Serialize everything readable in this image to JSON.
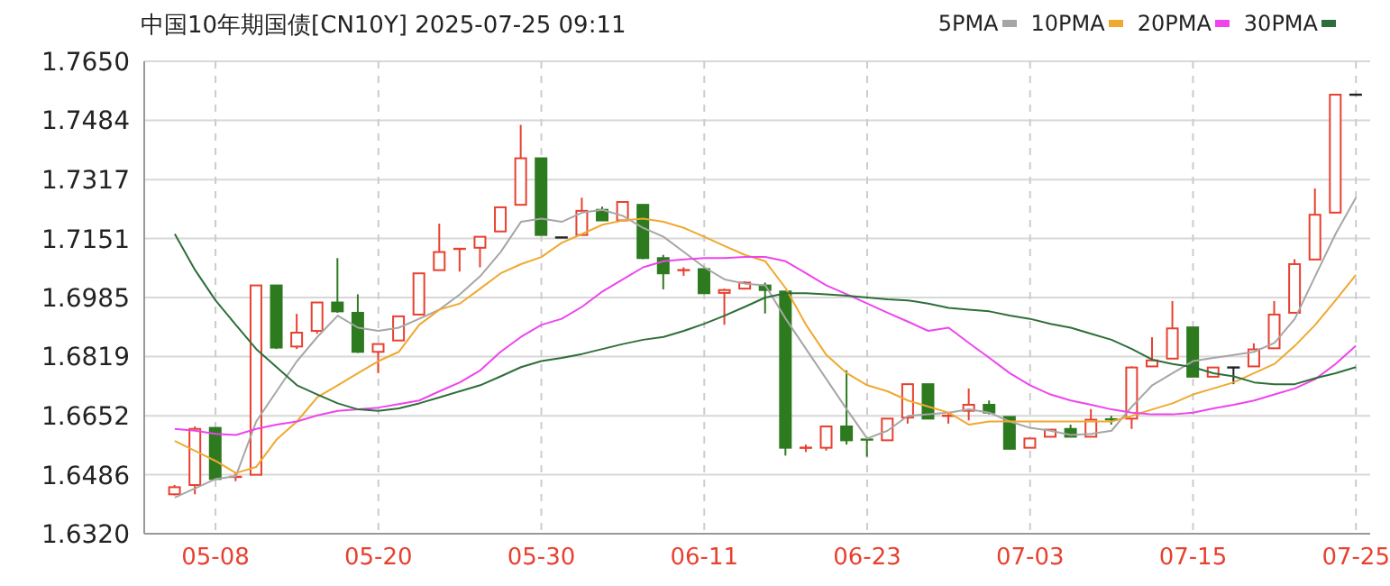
{
  "chart_data": {
    "type": "candlestick",
    "title": "中国10年期国债[CN10Y] 2025-07-25 09:11",
    "categories": [
      null,
      null,
      "05-08",
      null,
      null,
      null,
      null,
      null,
      null,
      null,
      "05-20",
      null,
      null,
      null,
      null,
      null,
      null,
      null,
      "05-30",
      null,
      null,
      null,
      null,
      null,
      null,
      null,
      "06-11",
      null,
      null,
      null,
      null,
      null,
      null,
      null,
      "06-23",
      null,
      null,
      null,
      null,
      null,
      null,
      null,
      "07-03",
      null,
      null,
      null,
      null,
      null,
      null,
      null,
      "07-15",
      null,
      null,
      null,
      null,
      null,
      null,
      null,
      "07-25"
    ],
    "ohlc": [
      [
        1.6431,
        1.6457,
        1.6428,
        1.6451
      ],
      [
        1.6457,
        1.6622,
        1.6431,
        1.6615
      ],
      [
        1.6618,
        1.6618,
        1.6474,
        1.6474
      ],
      [
        1.6476,
        1.649,
        1.6468,
        1.648
      ],
      [
        1.6486,
        1.7019,
        1.6486,
        1.7019
      ],
      [
        1.7019,
        1.7019,
        1.684,
        1.6844
      ],
      [
        1.6847,
        1.6939,
        1.684,
        1.6886
      ],
      [
        1.6891,
        1.6971,
        1.6883,
        1.6971
      ],
      [
        1.6971,
        1.7096,
        1.6942,
        1.6946
      ],
      [
        1.6942,
        1.6994,
        1.6829,
        1.6832
      ],
      [
        1.6832,
        1.6854,
        1.6772,
        1.6854
      ],
      [
        1.6864,
        1.6932,
        1.6864,
        1.6932
      ],
      [
        1.6937,
        1.7053,
        1.6937,
        1.7053
      ],
      [
        1.7062,
        1.7193,
        1.7062,
        1.7113
      ],
      [
        1.7119,
        1.7122,
        1.7058,
        1.7122
      ],
      [
        1.7125,
        1.7156,
        1.707,
        1.7156
      ],
      [
        1.7171,
        1.7239,
        1.7171,
        1.7239
      ],
      [
        1.7246,
        1.7471,
        1.7246,
        1.7377
      ],
      [
        1.7377,
        1.7377,
        1.7161,
        1.7161
      ],
      [
        1.7154,
        1.7154,
        1.7154,
        1.7154
      ],
      [
        1.7161,
        1.7266,
        1.7161,
        1.7229
      ],
      [
        1.7232,
        1.7241,
        1.7202,
        1.7202
      ],
      [
        1.7202,
        1.7254,
        1.7202,
        1.7254
      ],
      [
        1.7246,
        1.7246,
        1.7093,
        1.7096
      ],
      [
        1.7096,
        1.7105,
        1.7008,
        1.7053
      ],
      [
        1.7058,
        1.707,
        1.7046,
        1.7062
      ],
      [
        1.7065,
        1.7065,
        1.6997,
        1.6997
      ],
      [
        1.6998,
        1.701,
        1.6908,
        1.7006
      ],
      [
        1.701,
        1.703,
        1.701,
        1.7027
      ],
      [
        1.7019,
        1.7027,
        1.694,
        1.7006
      ],
      [
        1.7002,
        1.7002,
        1.654,
        1.6562
      ],
      [
        1.6557,
        1.6571,
        1.655,
        1.6562
      ],
      [
        1.6562,
        1.6622,
        1.6554,
        1.6622
      ],
      [
        1.6622,
        1.678,
        1.6571,
        1.6583
      ],
      [
        1.6585,
        1.6586,
        1.6537,
        1.658
      ],
      [
        1.6583,
        1.6644,
        1.6583,
        1.6644
      ],
      [
        1.6647,
        1.6741,
        1.663,
        1.6741
      ],
      [
        1.6741,
        1.6741,
        1.6644,
        1.6644
      ],
      [
        1.6649,
        1.6657,
        1.663,
        1.6652
      ],
      [
        1.6666,
        1.6729,
        1.6639,
        1.6683
      ],
      [
        1.6683,
        1.6695,
        1.6656,
        1.6661
      ],
      [
        1.6649,
        1.6649,
        1.6559,
        1.6559
      ],
      [
        1.6562,
        1.6588,
        1.6562,
        1.6588
      ],
      [
        1.6593,
        1.6613,
        1.6593,
        1.6613
      ],
      [
        1.6615,
        1.6627,
        1.6593,
        1.6593
      ],
      [
        1.6593,
        1.6671,
        1.6593,
        1.6641
      ],
      [
        1.6642,
        1.6652,
        1.6627,
        1.6639
      ],
      [
        1.6644,
        1.6791,
        1.6615,
        1.6788
      ],
      [
        1.6791,
        1.6873,
        1.6791,
        1.6808
      ],
      [
        1.6813,
        1.6975,
        1.6813,
        1.6898
      ],
      [
        1.6901,
        1.6901,
        1.6762,
        1.6762
      ],
      [
        1.6762,
        1.6788,
        1.6762,
        1.6788
      ],
      [
        1.6788,
        1.679,
        1.6741,
        1.6788
      ],
      [
        1.6791,
        1.6856,
        1.6791,
        1.6839
      ],
      [
        1.6842,
        1.6975,
        1.6842,
        1.6937
      ],
      [
        1.6942,
        1.7093,
        1.6942,
        1.7079
      ],
      [
        1.7092,
        1.7292,
        1.7092,
        1.7218
      ],
      [
        1.7224,
        1.7556,
        1.7224,
        1.7556
      ],
      [
        1.7556,
        1.7556,
        1.7556,
        1.7556
      ]
    ],
    "colors": [
      "#e8402f",
      "#e8402f",
      "#2d7a1f",
      "#e8402f",
      "#e8402f",
      "#2d7a1f",
      "#e8402f",
      "#e8402f",
      "#2d7a1f",
      "#2d7a1f",
      "#e8402f",
      "#e8402f",
      "#e8402f",
      "#e8402f",
      "#e8402f",
      "#e8402f",
      "#e8402f",
      "#e8402f",
      "#2d7a1f",
      "#222222",
      "#e8402f",
      "#2d7a1f",
      "#e8402f",
      "#2d7a1f",
      "#2d7a1f",
      "#e8402f",
      "#2d7a1f",
      "#e8402f",
      "#e8402f",
      "#2d7a1f",
      "#2d7a1f",
      "#e8402f",
      "#e8402f",
      "#2d7a1f",
      "#2d7a1f",
      "#e8402f",
      "#e8402f",
      "#2d7a1f",
      "#e8402f",
      "#e8402f",
      "#2d7a1f",
      "#2d7a1f",
      "#e8402f",
      "#e8402f",
      "#2d7a1f",
      "#e8402f",
      "#2d7a1f",
      "#e8402f",
      "#e8402f",
      "#e8402f",
      "#2d7a1f",
      "#e8402f",
      "#222222",
      "#e8402f",
      "#e8402f",
      "#e8402f",
      "#e8402f",
      "#e8402f",
      "#222222"
    ],
    "series": [
      {
        "name": "5PMA",
        "type": "line",
        "color": "#a6a6a6",
        "values": [
          1.6422,
          1.6448,
          1.6474,
          1.6482,
          1.6636,
          1.6721,
          1.6806,
          1.6874,
          1.6934,
          1.69,
          1.6891,
          1.69,
          1.6925,
          1.6951,
          1.6994,
          1.7045,
          1.7113,
          1.7198,
          1.7207,
          1.7198,
          1.7224,
          1.7232,
          1.7215,
          1.7181,
          1.7156,
          1.7113,
          1.707,
          1.7036,
          1.7024,
          1.7019,
          1.6925,
          1.684,
          1.6755,
          1.667,
          1.6588,
          1.661,
          1.6652,
          1.6656,
          1.6661,
          1.667,
          1.6661,
          1.6636,
          1.6618,
          1.661,
          1.6598,
          1.6601,
          1.661,
          1.6678,
          1.6738,
          1.6772,
          1.6806,
          1.6815,
          1.6823,
          1.6832,
          1.6857,
          1.6925,
          1.7045,
          1.7164,
          1.7266
        ]
      },
      {
        "name": "10PMA",
        "type": "line",
        "color": "#f0a830",
        "values": [
          1.6581,
          1.6553,
          1.6525,
          1.6491,
          1.6508,
          1.6585,
          1.6636,
          1.6704,
          1.6738,
          1.6772,
          1.6806,
          1.6832,
          1.6908,
          1.6951,
          1.6968,
          1.701,
          1.7053,
          1.7079,
          1.7099,
          1.7139,
          1.7164,
          1.719,
          1.7202,
          1.7207,
          1.7198,
          1.7181,
          1.7156,
          1.713,
          1.7105,
          1.7087,
          1.7011,
          1.6908,
          1.6823,
          1.6772,
          1.6738,
          1.6721,
          1.6695,
          1.6678,
          1.6661,
          1.6627,
          1.6636,
          1.6636,
          1.6636,
          1.6636,
          1.6636,
          1.6636,
          1.6636,
          1.6652,
          1.667,
          1.6687,
          1.6712,
          1.6729,
          1.6746,
          1.6772,
          1.6798,
          1.6849,
          1.6908,
          1.6977,
          1.7049
        ]
      },
      {
        "name": "20PMA",
        "type": "line",
        "color": "#ee44ee",
        "values": [
          1.6615,
          1.661,
          1.6601,
          1.6598,
          1.6615,
          1.6627,
          1.6636,
          1.6653,
          1.6666,
          1.667,
          1.6675,
          1.6685,
          1.6695,
          1.6721,
          1.6746,
          1.678,
          1.6832,
          1.6874,
          1.6908,
          1.6925,
          1.6959,
          1.7002,
          1.7036,
          1.707,
          1.7087,
          1.7092,
          1.7096,
          1.7096,
          1.7099,
          1.7099,
          1.7087,
          1.7053,
          1.7019,
          1.6994,
          1.6968,
          1.6942,
          1.6917,
          1.6891,
          1.69,
          1.6857,
          1.6815,
          1.6772,
          1.6738,
          1.6712,
          1.6695,
          1.6683,
          1.667,
          1.6661,
          1.6656,
          1.6656,
          1.6661,
          1.6673,
          1.6683,
          1.6695,
          1.6712,
          1.6729,
          1.6755,
          1.6798,
          1.6849
        ]
      },
      {
        "name": "30PMA",
        "type": "line",
        "color": "#2e6e3a",
        "values": [
          1.7164,
          1.7062,
          1.6977,
          1.6908,
          1.684,
          1.6789,
          1.6738,
          1.6712,
          1.6687,
          1.667,
          1.6666,
          1.6673,
          1.6687,
          1.6704,
          1.6721,
          1.6738,
          1.6763,
          1.6789,
          1.6806,
          1.6815,
          1.6826,
          1.684,
          1.6854,
          1.6866,
          1.6874,
          1.6891,
          1.6911,
          1.6934,
          1.6959,
          1.6985,
          1.6997,
          1.6997,
          1.6994,
          1.699,
          1.6985,
          1.698,
          1.6977,
          1.6968,
          1.6956,
          1.6951,
          1.6946,
          1.6934,
          1.6925,
          1.6911,
          1.69,
          1.6883,
          1.6866,
          1.684,
          1.681,
          1.6798,
          1.6789,
          1.6772,
          1.6763,
          1.6746,
          1.6741,
          1.6741,
          1.6758,
          1.6772,
          1.6789
        ]
      }
    ],
    "ylim": [
      1.632,
      1.765
    ],
    "yticks": [
      {
        "value": 1.765,
        "label": "1.7650"
      },
      1.7484,
      1.7317,
      1.7151,
      1.6985,
      1.6819,
      1.6652,
      1.6486,
      {
        "value": 1.632,
        "label": "1.6320"
      }
    ],
    "grid": true,
    "legend": "top right"
  }
}
